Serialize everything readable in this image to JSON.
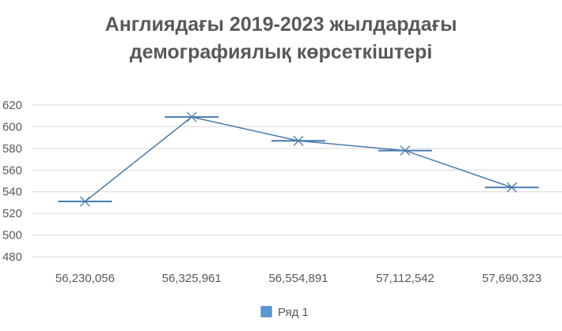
{
  "chart_data": {
    "type": "line",
    "title_lines": [
      "Англиядағы 2019-2023 жылдардағы",
      "демографиялық көрсеткіштері"
    ],
    "categories": [
      "56,230,056",
      "56,325,961",
      "56,554,891",
      "57,112,542",
      "57,690,323"
    ],
    "series": [
      {
        "name": "Ряд 1",
        "values": [
          531,
          609,
          587,
          578,
          544
        ]
      }
    ],
    "ylim": [
      480,
      620
    ],
    "yticks": [
      480,
      500,
      520,
      540,
      560,
      580,
      600,
      620
    ],
    "grid": true,
    "legend": "bottom",
    "colors": {
      "line": "#4a7aad",
      "legend_swatch": "#5b9bd5",
      "grid": "#d9d9d9",
      "text": "#595959"
    }
  }
}
